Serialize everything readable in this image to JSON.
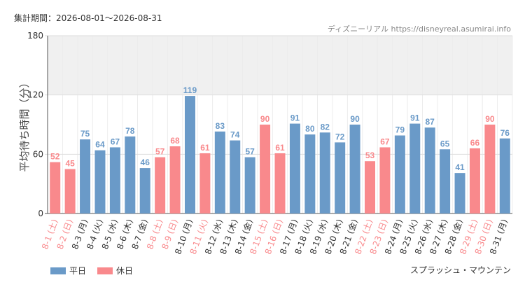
{
  "header": {
    "period_label": "集計期間：2026-08-01～2026-08-31",
    "source": "ディズニーリアル https://disneyreal.asumirai.info"
  },
  "legend": {
    "weekday": "平日",
    "holiday": "休日"
  },
  "attraction": "スプラッシュ・マウンテン",
  "colors": {
    "weekday": "#6a9ac8",
    "holiday": "#f9898c",
    "band": "#f0f0f0",
    "grid": "#dddddd"
  },
  "chart_data": {
    "type": "bar",
    "ylabel": "平均待ち時間（分）",
    "ylim": [
      0,
      180
    ],
    "yticks": [
      0,
      60,
      120,
      180
    ],
    "band": [
      120,
      180
    ],
    "grid": true,
    "legend_position": "bottom-left",
    "categories": [
      "8-1 (土)",
      "8-2 (日)",
      "8-3 (月)",
      "8-4 (火)",
      "8-5 (水)",
      "8-6 (木)",
      "8-7 (金)",
      "8-8 (土)",
      "8-9 (日)",
      "8-10 (月)",
      "8-11 (火)",
      "8-12 (水)",
      "8-13 (木)",
      "8-14 (金)",
      "8-15 (土)",
      "8-16 (日)",
      "8-17 (月)",
      "8-18 (火)",
      "8-19 (水)",
      "8-20 (木)",
      "8-21 (金)",
      "8-22 (土)",
      "8-23 (日)",
      "8-24 (月)",
      "8-25 (火)",
      "8-26 (水)",
      "8-27 (木)",
      "8-28 (金)",
      "8-29 (土)",
      "8-30 (日)",
      "8-31 (月)"
    ],
    "values": [
      52,
      45,
      75,
      64,
      67,
      78,
      46,
      57,
      68,
      119,
      61,
      83,
      74,
      57,
      90,
      61,
      91,
      80,
      82,
      72,
      90,
      53,
      67,
      79,
      91,
      87,
      65,
      41,
      66,
      90,
      76
    ],
    "day_type": [
      "休日",
      "休日",
      "平日",
      "平日",
      "平日",
      "平日",
      "平日",
      "休日",
      "休日",
      "平日",
      "休日",
      "平日",
      "平日",
      "平日",
      "休日",
      "休日",
      "平日",
      "平日",
      "平日",
      "平日",
      "平日",
      "休日",
      "休日",
      "平日",
      "平日",
      "平日",
      "平日",
      "平日",
      "休日",
      "休日",
      "平日"
    ]
  }
}
